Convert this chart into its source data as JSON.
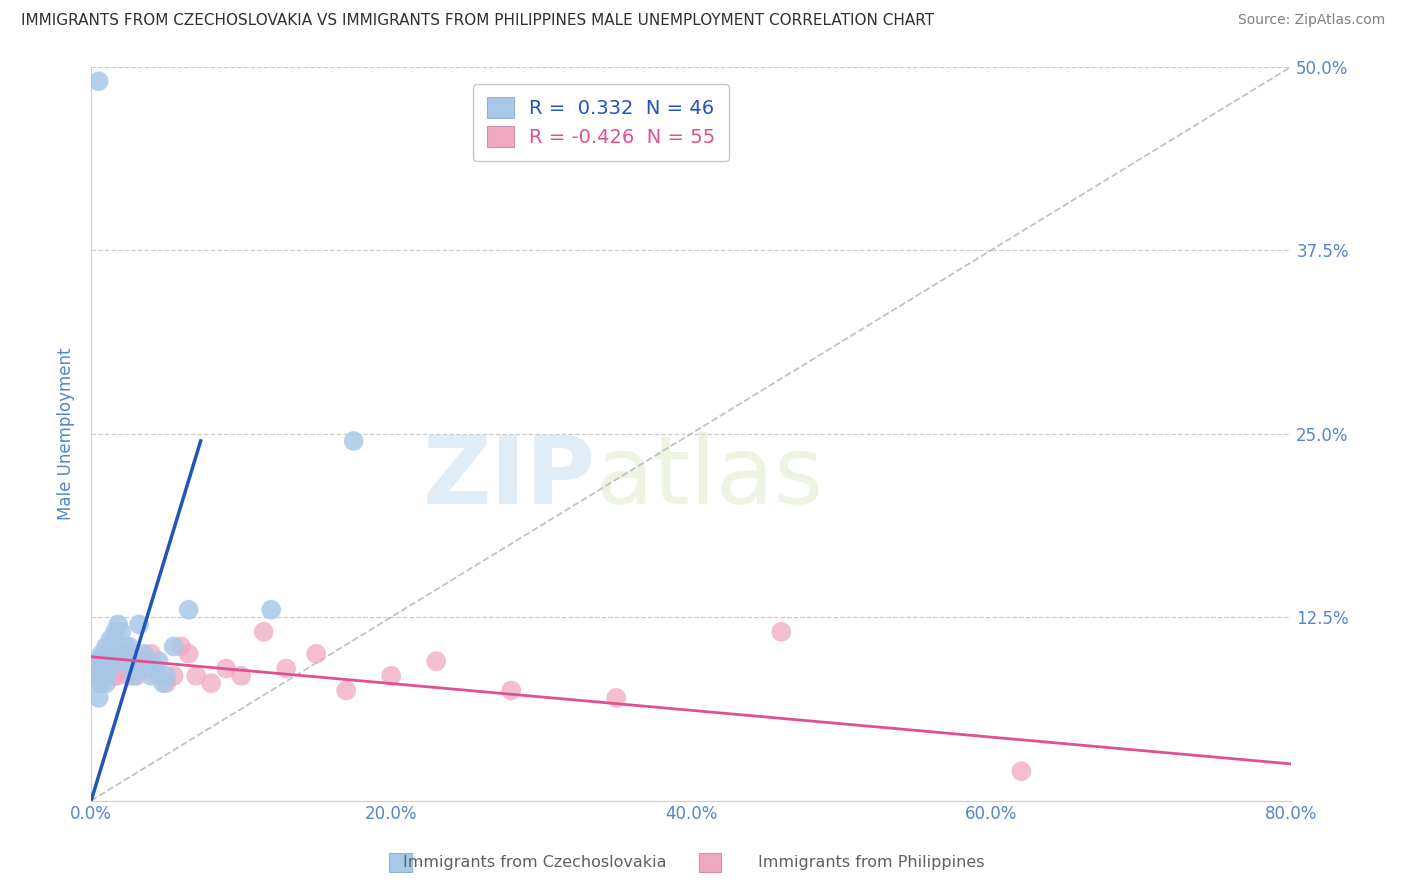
{
  "title": "IMMIGRANTS FROM CZECHOSLOVAKIA VS IMMIGRANTS FROM PHILIPPINES MALE UNEMPLOYMENT CORRELATION CHART",
  "source": "Source: ZipAtlas.com",
  "ylabel": "Male Unemployment",
  "legend_labels": [
    "Immigrants from Czechoslovakia",
    "Immigrants from Philippines"
  ],
  "r_czech": 0.332,
  "n_czech": 46,
  "r_phil": -0.426,
  "n_phil": 55,
  "color_czech": "#a8c8e8",
  "color_phil": "#f0a8c0",
  "line_color_czech": "#2255bb",
  "line_color_phil": "#e05090",
  "xlim": [
    0.0,
    0.8
  ],
  "ylim": [
    0.0,
    0.5
  ],
  "xticks": [
    0.0,
    0.2,
    0.4,
    0.6,
    0.8
  ],
  "xtick_labels": [
    "0.0%",
    "20.0%",
    "40.0%",
    "60.0%",
    "80.0%"
  ],
  "yticks": [
    0.0,
    0.125,
    0.25,
    0.375,
    0.5
  ],
  "ytick_labels_right": [
    "",
    "12.5%",
    "25.0%",
    "37.5%",
    "50.0%"
  ],
  "background_color": "#ffffff",
  "grid_color": "#c8c8c8",
  "watermark_zip": "ZIP",
  "watermark_atlas": "atlas",
  "title_color": "#303030",
  "axis_label_color": "#5585cc",
  "tick_label_color": "#5585cc",
  "czech_points_x": [
    0.005,
    0.005,
    0.005,
    0.005,
    0.005,
    0.007,
    0.007,
    0.007,
    0.008,
    0.008,
    0.008,
    0.009,
    0.009,
    0.01,
    0.01,
    0.01,
    0.01,
    0.01,
    0.012,
    0.012,
    0.013,
    0.013,
    0.015,
    0.016,
    0.017,
    0.018,
    0.019,
    0.02,
    0.021,
    0.022,
    0.023,
    0.025,
    0.028,
    0.03,
    0.032,
    0.035,
    0.04,
    0.042,
    0.045,
    0.048,
    0.05,
    0.055,
    0.065,
    0.12,
    0.175,
    0.005
  ],
  "czech_points_y": [
    0.07,
    0.08,
    0.085,
    0.09,
    0.095,
    0.08,
    0.09,
    0.1,
    0.085,
    0.09,
    0.095,
    0.095,
    0.1,
    0.08,
    0.085,
    0.09,
    0.095,
    0.105,
    0.09,
    0.1,
    0.095,
    0.11,
    0.1,
    0.115,
    0.095,
    0.12,
    0.1,
    0.115,
    0.1,
    0.095,
    0.105,
    0.105,
    0.085,
    0.09,
    0.12,
    0.1,
    0.085,
    0.09,
    0.095,
    0.08,
    0.085,
    0.105,
    0.13,
    0.13,
    0.245,
    0.49
  ],
  "phil_points_x": [
    0.004,
    0.005,
    0.005,
    0.006,
    0.006,
    0.007,
    0.007,
    0.007,
    0.008,
    0.008,
    0.009,
    0.009,
    0.01,
    0.01,
    0.01,
    0.011,
    0.011,
    0.012,
    0.013,
    0.014,
    0.015,
    0.015,
    0.016,
    0.017,
    0.018,
    0.019,
    0.02,
    0.022,
    0.023,
    0.025,
    0.027,
    0.03,
    0.033,
    0.035,
    0.038,
    0.04,
    0.045,
    0.05,
    0.055,
    0.06,
    0.065,
    0.07,
    0.08,
    0.09,
    0.1,
    0.115,
    0.13,
    0.15,
    0.17,
    0.2,
    0.23,
    0.28,
    0.35,
    0.46,
    0.62
  ],
  "phil_points_y": [
    0.09,
    0.085,
    0.09,
    0.09,
    0.095,
    0.085,
    0.09,
    0.095,
    0.085,
    0.09,
    0.085,
    0.095,
    0.09,
    0.085,
    0.095,
    0.09,
    0.095,
    0.085,
    0.09,
    0.095,
    0.085,
    0.09,
    0.095,
    0.085,
    0.09,
    0.095,
    0.09,
    0.095,
    0.1,
    0.085,
    0.1,
    0.085,
    0.09,
    0.095,
    0.09,
    0.1,
    0.085,
    0.08,
    0.085,
    0.105,
    0.1,
    0.085,
    0.08,
    0.09,
    0.085,
    0.115,
    0.09,
    0.1,
    0.075,
    0.085,
    0.095,
    0.075,
    0.07,
    0.115,
    0.02
  ],
  "czech_line_x0": 0.0,
  "czech_line_y0": 0.0,
  "czech_line_x1": 0.073,
  "czech_line_y1": 0.245,
  "phil_line_x0": 0.0,
  "phil_line_y0": 0.098,
  "phil_line_x1": 0.8,
  "phil_line_y1": 0.025
}
